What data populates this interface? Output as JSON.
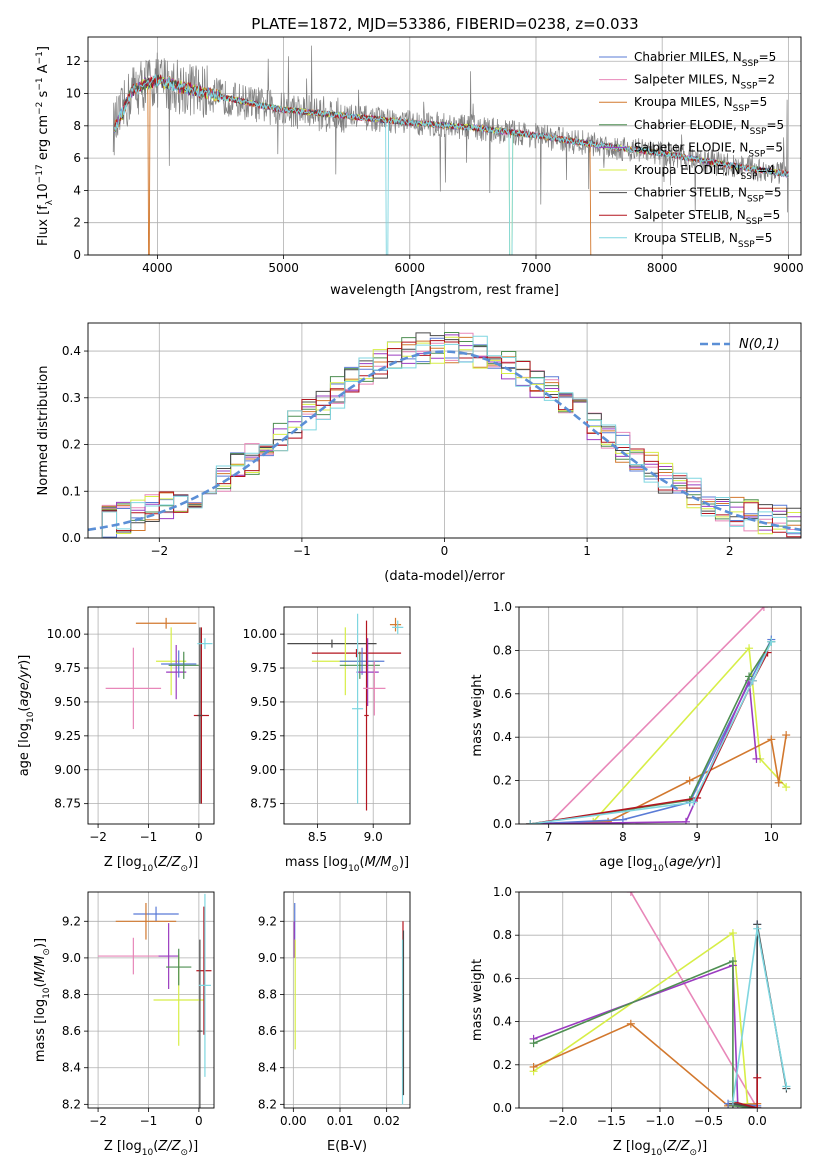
{
  "figure": {
    "title": "PLATE=1872, MJD=53386, FIBERID=0238, z=0.033"
  },
  "series_styles": [
    {
      "name": "Chabrier MILES",
      "color": "#5a7bd6",
      "nssp": "5"
    },
    {
      "name": "Salpeter MILES",
      "color": "#e887b9",
      "nssp": "2"
    },
    {
      "name": "Kroupa MILES",
      "color": "#d2782e",
      "nssp": "5"
    },
    {
      "name": "Chabrier ELODIE",
      "color": "#4e8f52",
      "nssp": "5"
    },
    {
      "name": "Salpeter ELODIE",
      "color": "#9b3cc0",
      "nssp": "5"
    },
    {
      "name": "Kroupa ELODIE",
      "color": "#d7ee47",
      "nssp": "4"
    },
    {
      "name": "Chabrier STELIB",
      "color": "#4a4a4a",
      "nssp": "5"
    },
    {
      "name": "Salpeter STELIB",
      "color": "#b3151f",
      "nssp": "5"
    },
    {
      "name": "Kroupa STELIB",
      "color": "#7fd6e0",
      "nssp": "5"
    }
  ],
  "chart_data": [
    {
      "id": "spectrum",
      "type": "line",
      "title": "PLATE=1872, MJD=53386, FIBERID=0238, z=0.033",
      "xlabel": "wavelength [Angstrom, rest frame]",
      "ylabel": "Flux [f_λ 10^-17 erg cm^-2 s^-1 A^-1]",
      "xlim": [
        3450,
        9100
      ],
      "ylim": [
        0,
        13.5
      ],
      "xticks": [
        4000,
        5000,
        6000,
        7000,
        8000,
        9000
      ],
      "yticks": [
        0,
        2,
        4,
        6,
        8,
        10,
        12
      ],
      "data_color": "#808080",
      "continuum_knots": {
        "x": [
          3650,
          3700,
          3800,
          3900,
          4000,
          4200,
          4500,
          4800,
          5000,
          5500,
          6000,
          6500,
          7000,
          7500,
          8000,
          8500,
          9000
        ],
        "y": [
          7.8,
          8.4,
          10.2,
          10.6,
          10.8,
          10.4,
          9.8,
          9.3,
          9.0,
          8.6,
          8.2,
          7.9,
          7.4,
          6.8,
          6.3,
          5.6,
          5.0
        ]
      },
      "legend_loc": "upper right"
    },
    {
      "id": "residuals",
      "type": "step",
      "xlabel": "(data-model)/error",
      "ylabel": "Normed distribution",
      "xlim": [
        -2.5,
        2.5
      ],
      "ylim": [
        0,
        0.46
      ],
      "xticks": [
        -2,
        -1,
        0,
        1,
        2
      ],
      "yticks": [
        0.0,
        0.1,
        0.2,
        0.3,
        0.4
      ],
      "gaussian_label": "N(0,1)",
      "gaussian_color": "#5b8fd6",
      "legend_loc": "upper right"
    },
    {
      "id": "age-vs-Z",
      "type": "errorbar",
      "xlabel": "Z [log10(Z/Z☉)]",
      "ylabel": "age [log10(age/yr)]",
      "xlim": [
        -2.2,
        0.3
      ],
      "ylim": [
        8.6,
        10.2
      ],
      "xticks": [
        -2,
        -1,
        0
      ],
      "yticks": [
        8.75,
        9.0,
        9.25,
        9.5,
        9.75,
        10.0
      ],
      "points": [
        {
          "s": 2,
          "x": -0.65,
          "xerr": 0.6,
          "y": 10.08,
          "yerr": 0.04
        },
        {
          "s": 1,
          "x": -1.3,
          "xerr": 0.55,
          "y": 9.6,
          "yerr": 0.3
        },
        {
          "s": 5,
          "x": -0.55,
          "xerr": 0.3,
          "y": 9.8,
          "yerr": 0.25
        },
        {
          "s": 4,
          "x": -0.45,
          "xerr": 0.2,
          "y": 9.72,
          "yerr": 0.2
        },
        {
          "s": 0,
          "x": -0.4,
          "xerr": 0.35,
          "y": 9.78,
          "yerr": 0.1
        },
        {
          "s": 3,
          "x": -0.3,
          "xerr": 0.3,
          "y": 9.77,
          "yerr": 0.1
        },
        {
          "s": 7,
          "x": 0.05,
          "xerr": 0.15,
          "y": 9.4,
          "yerr": 0.65
        },
        {
          "s": 6,
          "x": 0.02,
          "xerr": 0.05,
          "y": 9.4,
          "yerr": 0.65
        },
        {
          "s": 8,
          "x": 0.12,
          "xerr": 0.15,
          "y": 9.93,
          "yerr": 0.04
        }
      ]
    },
    {
      "id": "age-vs-mass",
      "type": "errorbar",
      "xlabel": "mass [log10(M/M☉)]",
      "xlim": [
        8.2,
        9.33
      ],
      "ylim": [
        8.6,
        10.2
      ],
      "xticks": [
        8.5,
        9.0
      ],
      "yticks": [
        8.75,
        9.0,
        9.25,
        9.5,
        9.75,
        10.0
      ],
      "points": [
        {
          "s": 6,
          "x": 8.63,
          "xerr": 0.4,
          "y": 9.93,
          "yerr": 0.03
        },
        {
          "s": 7,
          "x": 8.85,
          "xerr": 0.4,
          "y": 9.86,
          "yerr": 0.03
        },
        {
          "s": 5,
          "x": 8.75,
          "xerr": 0.3,
          "y": 9.8,
          "yerr": 0.25
        },
        {
          "s": 3,
          "x": 8.88,
          "xerr": 0.18,
          "y": 9.77,
          "yerr": 0.1
        },
        {
          "s": 0,
          "x": 8.9,
          "xerr": 0.2,
          "y": 9.8,
          "yerr": 0.1
        },
        {
          "s": 4,
          "x": 8.95,
          "xerr": 0.1,
          "y": 9.72,
          "yerr": 0.25
        },
        {
          "s": 8,
          "x": 8.86,
          "xerr": 0.05,
          "y": 9.45,
          "yerr": 0.7
        },
        {
          "s": 7,
          "x": 8.94,
          "xerr": 0.02,
          "y": 9.4,
          "yerr": 0.7
        },
        {
          "s": 1,
          "x": 9.01,
          "xerr": 0.1,
          "y": 9.6,
          "yerr": 0.2
        },
        {
          "s": 2,
          "x": 9.2,
          "xerr": 0.05,
          "y": 10.07,
          "yerr": 0.05
        },
        {
          "s": 8,
          "x": 9.22,
          "xerr": 0.05,
          "y": 10.05,
          "yerr": 0.05
        }
      ]
    },
    {
      "id": "mass-weight-vs-age",
      "type": "line",
      "xlabel": "age [log10(age/yr)]",
      "ylabel": "mass weight",
      "xlim": [
        6.6,
        10.4
      ],
      "ylim": [
        0,
        1.0
      ],
      "xticks": [
        7,
        8,
        9,
        10
      ],
      "yticks": [
        0.0,
        0.2,
        0.4,
        0.6,
        0.8,
        1.0
      ],
      "series": [
        {
          "s": 1,
          "x": [
            7.0,
            9.9
          ],
          "y": [
            0.0,
            1.0
          ]
        },
        {
          "s": 5,
          "x": [
            6.75,
            7.6,
            9.7,
            9.85,
            10.2
          ],
          "y": [
            0.0,
            0.01,
            0.81,
            0.3,
            0.17
          ]
        },
        {
          "s": 2,
          "x": [
            6.75,
            7.8,
            8.9,
            10.0,
            10.1,
            10.2
          ],
          "y": [
            0.0,
            0.01,
            0.2,
            0.39,
            0.19,
            0.41
          ]
        },
        {
          "s": 0,
          "x": [
            6.75,
            8.0,
            8.9,
            9.7,
            10.0
          ],
          "y": [
            0.0,
            0.02,
            0.1,
            0.65,
            0.85
          ]
        },
        {
          "s": 4,
          "x": [
            6.75,
            8.85,
            9.7,
            9.8
          ],
          "y": [
            0.0,
            0.01,
            0.66,
            0.3
          ]
        },
        {
          "s": 3,
          "x": [
            6.75,
            8.9,
            9.7,
            10.0
          ],
          "y": [
            0.0,
            0.11,
            0.68,
            0.84
          ]
        },
        {
          "s": 7,
          "x": [
            6.75,
            9.0,
            9.75,
            9.95
          ],
          "y": [
            0.0,
            0.12,
            0.66,
            0.79
          ]
        },
        {
          "s": 8,
          "x": [
            6.75,
            8.95,
            9.75,
            10.0
          ],
          "y": [
            0.0,
            0.1,
            0.66,
            0.84
          ]
        }
      ]
    },
    {
      "id": "mass-vs-Z",
      "type": "errorbar",
      "xlabel": "Z [log10(Z/Z☉)]",
      "ylabel": "mass [log10(M/M☉)]",
      "xlim": [
        -2.2,
        0.3
      ],
      "ylim": [
        8.18,
        9.36
      ],
      "xticks": [
        -2,
        -1,
        0
      ],
      "yticks": [
        8.2,
        8.4,
        8.6,
        8.8,
        9.0,
        9.2
      ],
      "points": [
        {
          "s": 0,
          "x": -0.85,
          "xerr": 0.45,
          "y": 9.24,
          "yerr": 0.04
        },
        {
          "s": 2,
          "x": -1.05,
          "xerr": 0.6,
          "y": 9.2,
          "yerr": 0.1
        },
        {
          "s": 1,
          "x": -1.3,
          "xerr": 0.7,
          "y": 9.01,
          "yerr": 0.1
        },
        {
          "s": 4,
          "x": -0.6,
          "xerr": 0.2,
          "y": 9.01,
          "yerr": 0.18
        },
        {
          "s": 5,
          "x": -0.4,
          "xerr": 0.5,
          "y": 8.77,
          "yerr": 0.25
        },
        {
          "s": 3,
          "x": -0.4,
          "xerr": 0.25,
          "y": 8.95,
          "yerr": 0.1
        },
        {
          "s": 7,
          "x": 0.1,
          "xerr": 0.15,
          "y": 8.93,
          "yerr": 0.35
        },
        {
          "s": 6,
          "x": 0.02,
          "xerr": 0.05,
          "y": 8.6,
          "yerr": 0.5
        },
        {
          "s": 8,
          "x": 0.12,
          "xerr": 0.12,
          "y": 8.85,
          "yerr": 0.5
        }
      ]
    },
    {
      "id": "mass-vs-EBV",
      "type": "errorbar",
      "xlabel": "E(B-V)",
      "xlim": [
        -0.002,
        0.025
      ],
      "ylim": [
        8.18,
        9.36
      ],
      "xticks": [
        0.0,
        0.01,
        0.02
      ],
      "yticks": [
        8.2,
        8.4,
        8.6,
        8.8,
        9.0,
        9.2
      ],
      "points": [
        {
          "s": 0,
          "x": 0.0003,
          "xerr": 0.0,
          "y": 9.2,
          "yerr": 0.1
        },
        {
          "s": 4,
          "x": 0.0002,
          "xerr": 0.0,
          "y": 9.1,
          "yerr": 0.1
        },
        {
          "s": 5,
          "x": 0.0004,
          "xerr": 0.0,
          "y": 8.8,
          "yerr": 0.3
        },
        {
          "s": 7,
          "x": 0.0235,
          "xerr": 0.0,
          "y": 9.1,
          "yerr": 0.1
        },
        {
          "s": 8,
          "x": 0.0234,
          "xerr": 0.0,
          "y": 8.65,
          "yerr": 0.45
        },
        {
          "s": 6,
          "x": 0.0236,
          "xerr": 0.0,
          "y": 8.7,
          "yerr": 0.45
        }
      ]
    },
    {
      "id": "mass-weight-vs-Z",
      "type": "line",
      "xlabel": "Z [log10(Z/Z☉)]",
      "ylabel": "mass weight",
      "xlim": [
        -2.45,
        0.45
      ],
      "ylim": [
        0,
        1.0
      ],
      "xticks": [
        -2.0,
        -1.5,
        -1.0,
        -0.5,
        0.0
      ],
      "yticks": [
        0.0,
        0.2,
        0.4,
        0.6,
        0.8,
        1.0
      ],
      "series": [
        {
          "s": 1,
          "x": [
            -1.3,
            0.0
          ],
          "y": [
            1.0,
            0.0
          ]
        },
        {
          "s": 5,
          "x": [
            -2.3,
            -0.25,
            -0.1,
            0.0
          ],
          "y": [
            0.17,
            0.81,
            0.02,
            0.0
          ]
        },
        {
          "s": 2,
          "x": [
            -2.3,
            -1.3,
            -0.3,
            0.0
          ],
          "y": [
            0.19,
            0.39,
            0.01,
            0.02
          ]
        },
        {
          "s": 4,
          "x": [
            -2.3,
            -0.25,
            -0.2,
            0.0
          ],
          "y": [
            0.32,
            0.66,
            0.01,
            0.0
          ]
        },
        {
          "s": 3,
          "x": [
            -2.3,
            -0.25,
            -0.25,
            0.0
          ],
          "y": [
            0.3,
            0.68,
            0.01,
            0.0
          ]
        },
        {
          "s": 0,
          "x": [
            -0.3,
            0.0,
            0.0
          ],
          "y": [
            0.02,
            0.01,
            0.85
          ]
        },
        {
          "s": 6,
          "x": [
            -0.25,
            0.0,
            0.0,
            0.3
          ],
          "y": [
            0.02,
            0.0,
            0.85,
            0.09
          ]
        },
        {
          "s": 7,
          "x": [
            -0.25,
            0.0,
            0.0
          ],
          "y": [
            0.03,
            0.0,
            0.14
          ]
        },
        {
          "s": 8,
          "x": [
            -0.25,
            0.0,
            0.3
          ],
          "y": [
            0.03,
            0.83,
            0.1
          ]
        }
      ]
    }
  ]
}
